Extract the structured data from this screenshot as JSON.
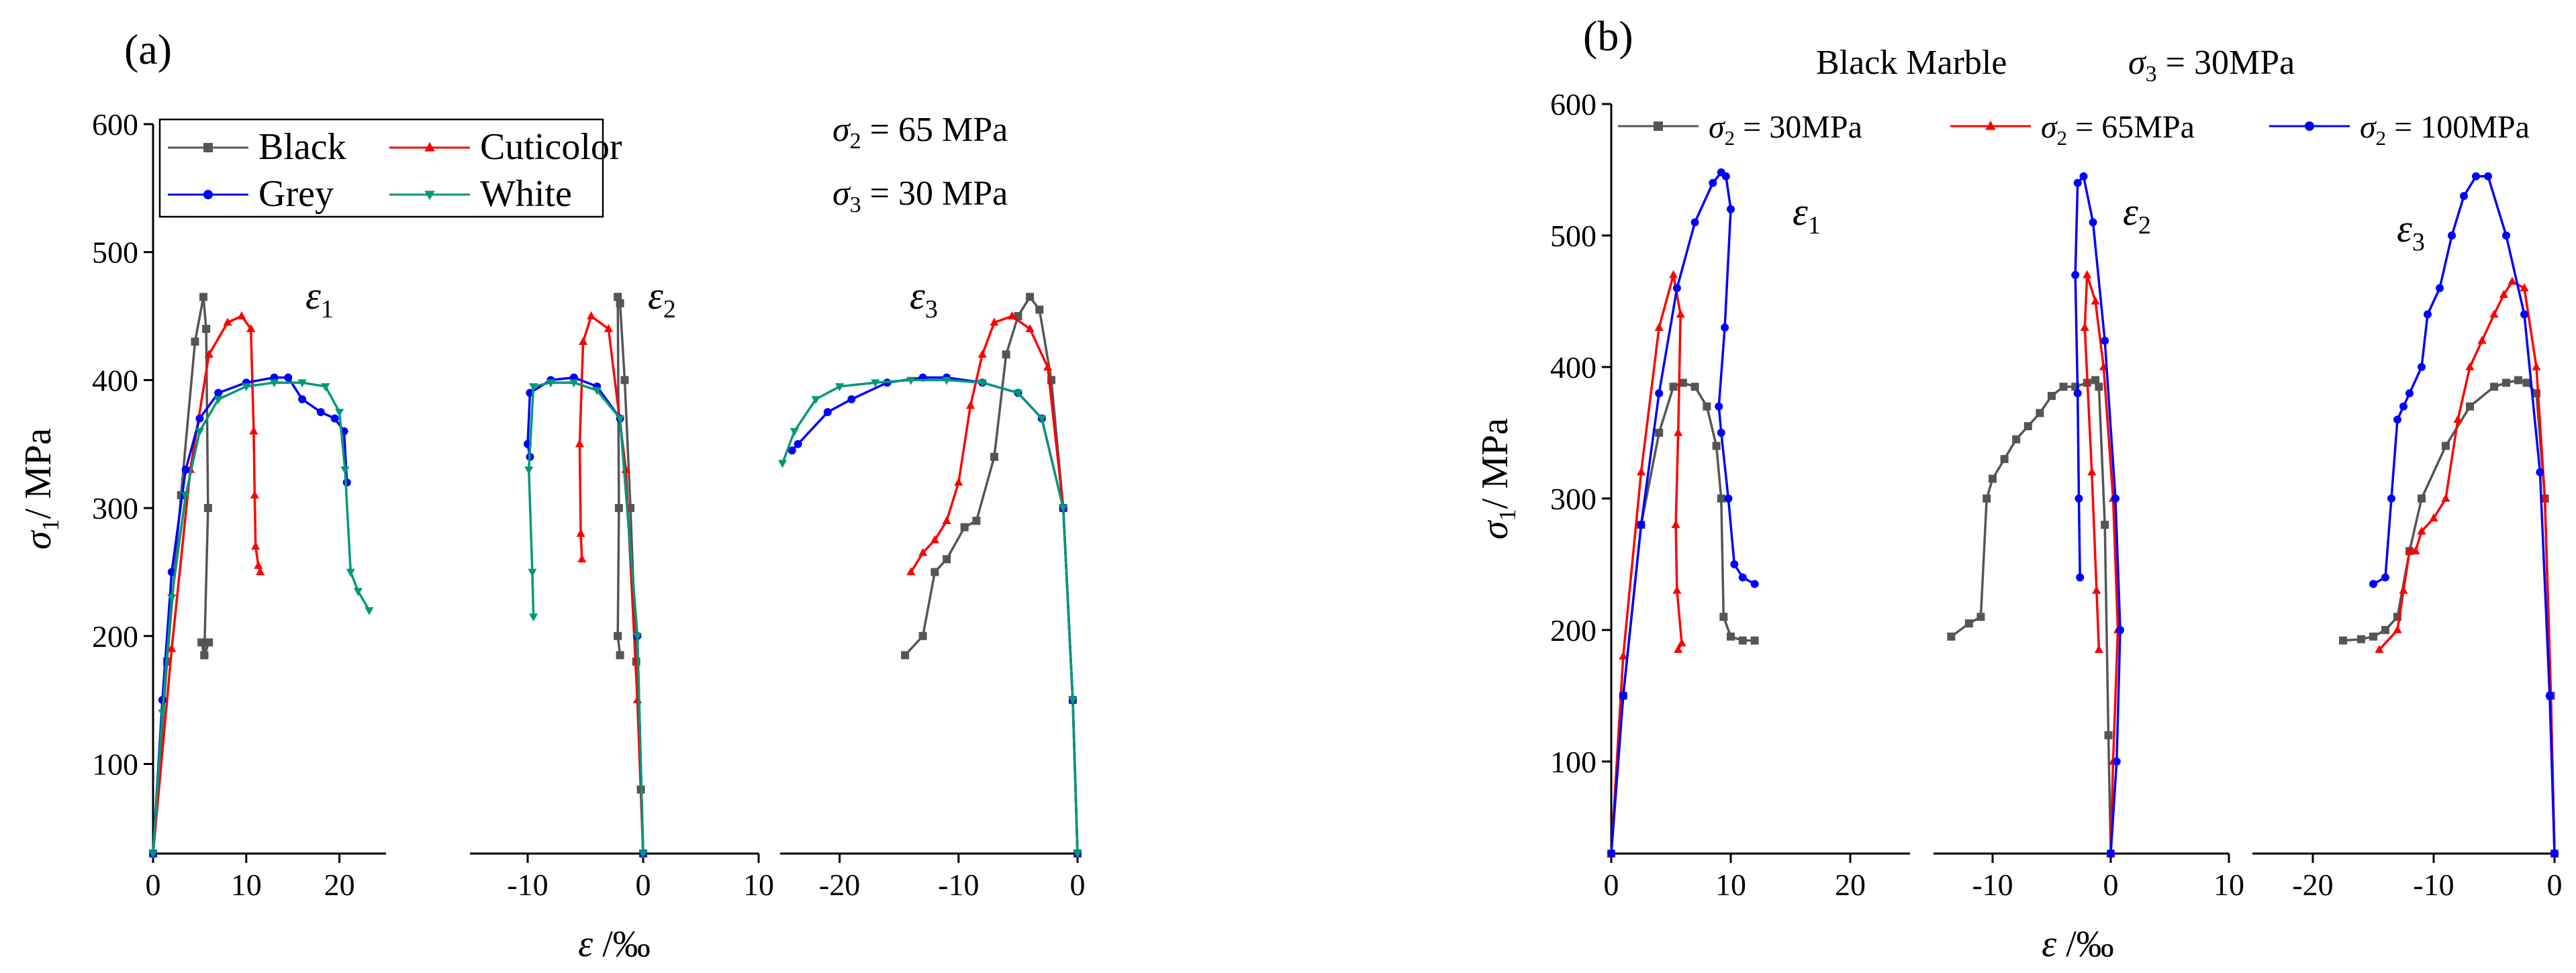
{
  "chart_data": [
    {
      "panel_label": "(a)",
      "type": "line",
      "title": "",
      "ylabel_main": "σ",
      "ylabel_sub": "1",
      "ylabel_rest": "/ MPa",
      "xlabel_main": "ε",
      "xlabel_rest": " /‰",
      "ylim": [
        30,
        600
      ],
      "yticks": [
        100,
        200,
        300,
        400,
        500,
        600
      ],
      "legend": {
        "placement": "top-left",
        "columns": 2,
        "entries": [
          {
            "name": "Black",
            "color": "#555555",
            "marker": "square"
          },
          {
            "name": "Cuticolor",
            "color": "#ff0000",
            "marker": "triangle-up"
          },
          {
            "name": "Grey",
            "color": "#0000ff",
            "marker": "circle"
          },
          {
            "name": "White",
            "color": "#009977",
            "marker": "triangle-down"
          }
        ]
      },
      "conditions": [
        {
          "sym": "σ",
          "sub": "2",
          "text": " = 65 MPa"
        },
        {
          "sym": "σ",
          "sub": "3",
          "text": " = 30 MPa"
        }
      ],
      "subplots": [
        {
          "name": "ε",
          "sub": "1",
          "xlim": [
            0,
            25
          ],
          "xticks": [
            0,
            10,
            20
          ],
          "series": [
            {
              "name": "Black",
              "x": [
                0,
                1.5,
                3,
                4.5,
                5.4,
                5.7,
                5.9,
                5.5,
                5.2,
                5.5,
                6.0
              ],
              "y": [
                30,
                180,
                310,
                430,
                465,
                440,
                300,
                185,
                195,
                185,
                195
              ]
            },
            {
              "name": "Cuticolor",
              "x": [
                0,
                2,
                4,
                6,
                8,
                9.5,
                10.5,
                10.8,
                10.9,
                11.0,
                11.3,
                11.5
              ],
              "y": [
                30,
                190,
                330,
                420,
                445,
                450,
                440,
                360,
                310,
                270,
                255,
                250
              ]
            },
            {
              "name": "Grey",
              "x": [
                0,
                1,
                2,
                3.5,
                5,
                7,
                10,
                13,
                14.5,
                16,
                18,
                19.5,
                20.5,
                20.8
              ],
              "y": [
                30,
                150,
                250,
                330,
                370,
                390,
                398,
                402,
                402,
                385,
                375,
                370,
                360,
                320
              ]
            },
            {
              "name": "White",
              "x": [
                0,
                1,
                2,
                3.5,
                5,
                7,
                10,
                13,
                16,
                18.5,
                20,
                20.6,
                21.2,
                22,
                23.2
              ],
              "y": [
                30,
                140,
                230,
                310,
                360,
                385,
                395,
                398,
                398,
                395,
                375,
                330,
                250,
                235,
                220
              ]
            }
          ]
        },
        {
          "name": "ε",
          "sub": "2",
          "xlim": [
            -15,
            10
          ],
          "xticks": [
            -10,
            0,
            10
          ],
          "series": [
            {
              "name": "Black",
              "x": [
                0,
                -0.2,
                -0.6,
                -1.1,
                -1.6,
                -2.0,
                -2.2,
                -2.1,
                -2.2,
                -2.0
              ],
              "y": [
                30,
                80,
                180,
                300,
                400,
                460,
                465,
                300,
                200,
                185
              ]
            },
            {
              "name": "Cuticolor",
              "x": [
                0,
                -0.5,
                -1.5,
                -3,
                -4.5,
                -5.2,
                -5.5,
                -5.4,
                -5.3
              ],
              "y": [
                30,
                150,
                330,
                440,
                450,
                430,
                350,
                280,
                260
              ]
            },
            {
              "name": "Grey",
              "x": [
                0,
                -0.5,
                -2,
                -4,
                -6,
                -8,
                -9.8,
                -10,
                -9.8
              ],
              "y": [
                30,
                200,
                370,
                395,
                402,
                400,
                390,
                350,
                340
              ]
            },
            {
              "name": "White",
              "x": [
                0,
                -0.5,
                -2,
                -4,
                -6,
                -8,
                -9.5,
                -9.9,
                -9.6,
                -9.5
              ],
              "y": [
                30,
                200,
                370,
                392,
                398,
                398,
                395,
                330,
                250,
                215
              ]
            }
          ]
        },
        {
          "name": "ε",
          "sub": "3",
          "xlim": [
            -25,
            0
          ],
          "xticks": [
            -20,
            -10,
            0
          ],
          "series": [
            {
              "name": "Black",
              "x": [
                0,
                -0.4,
                -1.2,
                -2.2,
                -3.2,
                -4,
                -5,
                -6,
                -7,
                -8.5,
                -9.5,
                -11,
                -12,
                -13,
                -14.5
              ],
              "y": [
                30,
                150,
                300,
                400,
                455,
                465,
                450,
                420,
                340,
                290,
                285,
                260,
                250,
                200,
                185
              ]
            },
            {
              "name": "Cuticolor",
              "x": [
                0,
                -0.4,
                -1.2,
                -2.5,
                -4,
                -5.5,
                -7,
                -8,
                -9,
                -10,
                -11,
                -12,
                -13,
                -14
              ],
              "y": [
                30,
                150,
                300,
                410,
                440,
                450,
                445,
                420,
                380,
                320,
                290,
                275,
                265,
                250
              ]
            },
            {
              "name": "Grey",
              "x": [
                0,
                -0.4,
                -1.2,
                -3,
                -5,
                -8,
                -11,
                -13,
                -16,
                -19,
                -21,
                -23.5,
                -24
              ],
              "y": [
                30,
                150,
                300,
                370,
                390,
                398,
                402,
                402,
                398,
                385,
                375,
                350,
                345
              ]
            },
            {
              "name": "White",
              "x": [
                0,
                -0.4,
                -1.2,
                -3,
                -5,
                -8,
                -11,
                -14,
                -17,
                -20,
                -22,
                -23.8,
                -24.8
              ],
              "y": [
                30,
                150,
                300,
                370,
                390,
                398,
                400,
                400,
                398,
                395,
                385,
                360,
                335
              ]
            }
          ]
        }
      ]
    },
    {
      "panel_label": "(b)",
      "type": "line",
      "title": "Black Marble",
      "title_condition": {
        "sym": "σ",
        "sub": "3",
        "text": " = 30MPa"
      },
      "ylabel_main": "σ",
      "ylabel_sub": "1",
      "ylabel_rest": "/ MPa",
      "xlabel_main": "ε",
      "xlabel_rest": " /‰",
      "ylim": [
        30,
        600
      ],
      "yticks": [
        100,
        200,
        300,
        400,
        500,
        600
      ],
      "legend": {
        "placement": "top",
        "columns": 3,
        "entries": [
          {
            "sym": "σ",
            "sub": "2",
            "text": " = 30MPa",
            "color": "#555555",
            "marker": "square"
          },
          {
            "sym": "σ",
            "sub": "2",
            "text": " = 65MPa",
            "color": "#ff0000",
            "marker": "triangle-up"
          },
          {
            "sym": "σ",
            "sub": "2",
            "text": " = 100MPa",
            "color": "#0000ff",
            "marker": "circle"
          }
        ]
      },
      "subplots": [
        {
          "name": "ε",
          "sub": "1",
          "xlim": [
            0,
            25
          ],
          "xticks": [
            0,
            10,
            20
          ],
          "series": [
            {
              "name": "σ2 = 30MPa",
              "x": [
                0,
                1,
                2.5,
                4,
                5.2,
                6,
                7,
                8,
                8.8,
                9.2,
                9.4,
                10,
                11,
                12
              ],
              "y": [
                30,
                150,
                280,
                350,
                385,
                388,
                385,
                370,
                340,
                300,
                210,
                195,
                192,
                192
              ]
            },
            {
              "name": "σ2 = 65MPa",
              "x": [
                0,
                1,
                2.5,
                4,
                5.2,
                5.8,
                5.6,
                5.4,
                5.5,
                5.9,
                5.6
              ],
              "y": [
                30,
                180,
                320,
                430,
                470,
                440,
                350,
                280,
                230,
                190,
                185
              ]
            },
            {
              "name": "σ2 = 100MPa",
              "x": [
                0,
                1,
                2.5,
                4,
                5.5,
                7,
                8.5,
                9.2,
                9.6,
                10,
                9.5,
                9.0,
                9.2,
                9.8,
                10.3,
                11,
                12
              ],
              "y": [
                30,
                150,
                280,
                380,
                460,
                510,
                540,
                548,
                545,
                520,
                430,
                370,
                350,
                300,
                250,
                240,
                235
              ]
            }
          ]
        },
        {
          "name": "ε",
          "sub": "2",
          "xlim": [
            -15,
            10
          ],
          "xticks": [
            -10,
            0,
            10
          ],
          "series": [
            {
              "name": "σ2 = 30MPa",
              "x": [
                0,
                -0.2,
                -0.5,
                -1,
                -1.3,
                -2,
                -3,
                -4,
                -5,
                -6,
                -7,
                -8,
                -9,
                -10,
                -10.5,
                -11,
                -12,
                -13.5
              ],
              "y": [
                30,
                120,
                280,
                385,
                390,
                388,
                385,
                385,
                378,
                365,
                355,
                345,
                330,
                315,
                300,
                210,
                205,
                195
              ]
            },
            {
              "name": "σ2 = 65MPa",
              "x": [
                0,
                0.2,
                0.6,
                0.2,
                -0.6,
                -1.3,
                -2,
                -2.2,
                -1.6,
                -1.2,
                -1.0
              ],
              "y": [
                30,
                100,
                200,
                300,
                400,
                450,
                470,
                430,
                320,
                230,
                185
              ]
            },
            {
              "name": "σ2 = 100MPa",
              "x": [
                0,
                0.5,
                0.8,
                0.4,
                -0.5,
                -1.5,
                -2.3,
                -2.8,
                -3.0,
                -2.8,
                -2.7,
                -2.6
              ],
              "y": [
                30,
                100,
                200,
                300,
                420,
                510,
                545,
                540,
                470,
                380,
                300,
                240
              ]
            }
          ]
        },
        {
          "name": "ε",
          "sub": "3",
          "xlim": [
            -25,
            0
          ],
          "xticks": [
            -20,
            -10,
            0
          ],
          "series": [
            {
              "name": "σ2 = 30MPa",
              "x": [
                0,
                -0.3,
                -0.8,
                -1.5,
                -2.3,
                -3,
                -4,
                -5,
                -7,
                -9,
                -11,
                -12,
                -13,
                -14,
                -15,
                -16,
                -17.5
              ],
              "y": [
                30,
                150,
                300,
                380,
                388,
                390,
                388,
                385,
                370,
                340,
                300,
                260,
                210,
                200,
                195,
                193,
                192
              ]
            },
            {
              "name": "σ2 = 65MPa",
              "x": [
                0,
                -0.3,
                -0.8,
                -1.5,
                -2.5,
                -3.5,
                -4.2,
                -5,
                -6,
                -7,
                -8,
                -9,
                -10,
                -11,
                -11.5,
                -12,
                -12.5,
                -13,
                -14.5
              ],
              "y": [
                30,
                150,
                300,
                400,
                460,
                465,
                455,
                440,
                420,
                400,
                360,
                300,
                285,
                275,
                260,
                260,
                230,
                200,
                185
              ]
            },
            {
              "name": "σ2 = 100MPa",
              "x": [
                0,
                -0.4,
                -1.2,
                -2.5,
                -4,
                -5.5,
                -6.5,
                -7.5,
                -8.5,
                -9.5,
                -10.5,
                -11,
                -12,
                -12.5,
                -13,
                -13.5,
                -14,
                -15
              ],
              "y": [
                30,
                150,
                320,
                440,
                500,
                545,
                545,
                530,
                500,
                460,
                440,
                400,
                380,
                370,
                360,
                300,
                240,
                235
              ]
            }
          ]
        }
      ]
    }
  ]
}
